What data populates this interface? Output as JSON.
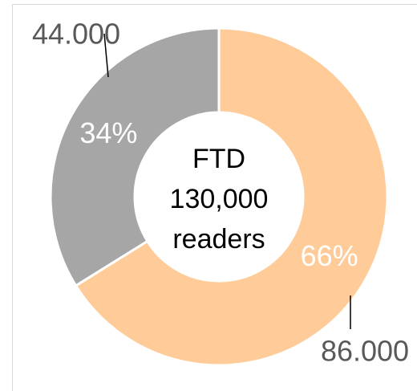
{
  "chart_data": {
    "type": "donut",
    "values": [
      86000,
      44000
    ],
    "value_labels": [
      "86.000",
      "44.000"
    ],
    "percent_labels": [
      "66%",
      "34%"
    ],
    "colors": [
      "#ffcc99",
      "#a6a6a6"
    ],
    "center_text": [
      "FTD",
      "130,000",
      "readers"
    ]
  }
}
